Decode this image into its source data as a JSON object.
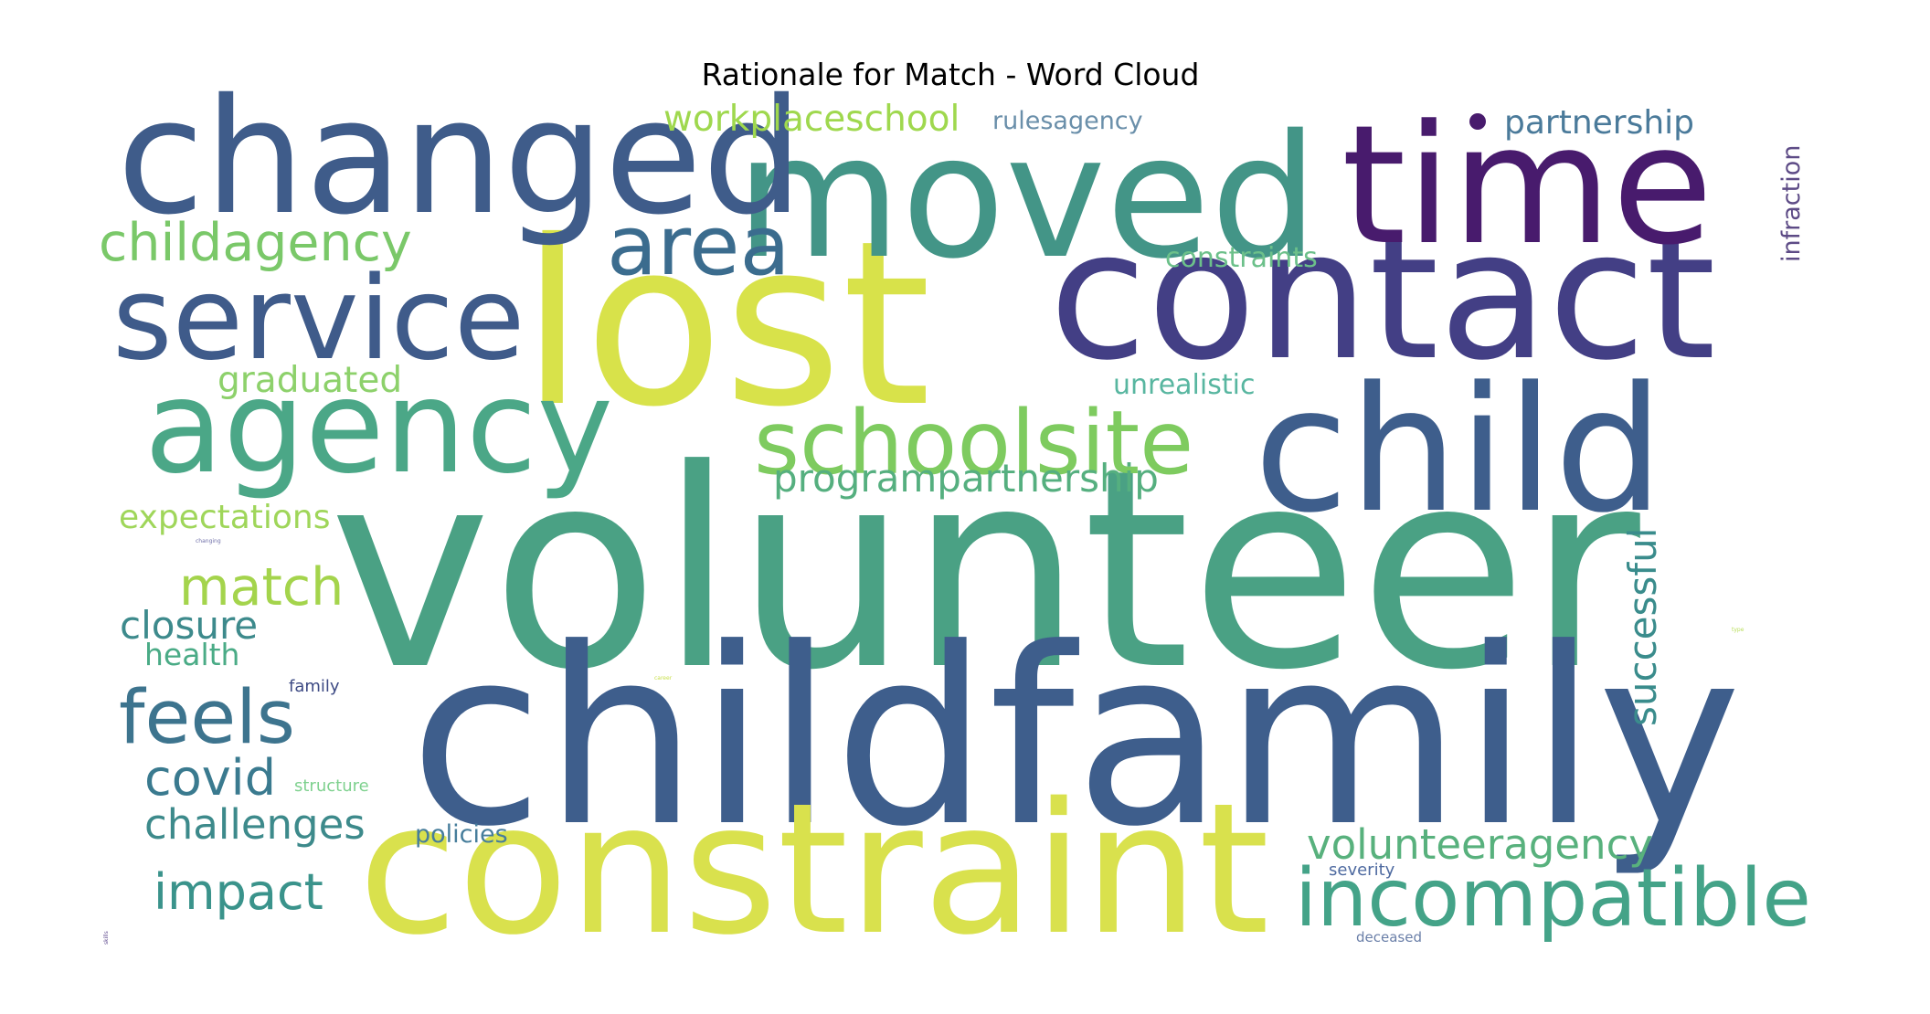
{
  "chart_data": {
    "type": "wordcloud",
    "title": "Rationale for Match - Word Cloud",
    "words": [
      {
        "text": "volunteer",
        "weight": 1.0,
        "color": "#4aa184"
      },
      {
        "text": "childfamily",
        "weight": 0.89,
        "color": "#3e5e8c"
      },
      {
        "text": "lost",
        "weight": 0.83,
        "color": "#d8e24a"
      },
      {
        "text": "constraint",
        "weight": 0.66,
        "color": "#d9e14d"
      },
      {
        "text": "contact",
        "weight": 0.65,
        "color": "#433f85"
      },
      {
        "text": "child",
        "weight": 0.63,
        "color": "#3e5e8c"
      },
      {
        "text": "moved",
        "weight": 0.62,
        "color": "#439587"
      },
      {
        "text": "time",
        "weight": 0.6,
        "color": "#481b6d"
      },
      {
        "text": "changed",
        "weight": 0.58,
        "color": "#3f5c8a"
      },
      {
        "text": "agency",
        "weight": 0.47,
        "color": "#4ba787"
      },
      {
        "text": "service",
        "weight": 0.42,
        "color": "#3f5b8a"
      },
      {
        "text": "schoolsite",
        "weight": 0.32,
        "color": "#7ecb5f"
      },
      {
        "text": "area",
        "weight": 0.3,
        "color": "#3b6c8e"
      },
      {
        "text": "incompatible",
        "weight": 0.29,
        "color": "#44a388"
      },
      {
        "text": "feels",
        "weight": 0.27,
        "color": "#3d748e"
      },
      {
        "text": "childagency",
        "weight": 0.19,
        "color": "#7ac869"
      },
      {
        "text": "match",
        "weight": 0.19,
        "color": "#a4d44c"
      },
      {
        "text": "impact",
        "weight": 0.18,
        "color": "#3a938b"
      },
      {
        "text": "covid",
        "weight": 0.18,
        "color": "#3a7a8f"
      },
      {
        "text": "volunteeragency",
        "weight": 0.15,
        "color": "#58b17d"
      },
      {
        "text": "challenges",
        "weight": 0.15,
        "color": "#3d8a8b"
      },
      {
        "text": "closure",
        "weight": 0.14,
        "color": "#3d8a8c"
      },
      {
        "text": "successful",
        "weight": 0.14,
        "color": "#3a8c8c"
      },
      {
        "text": "programpartnership",
        "weight": 0.14,
        "color": "#55af7f"
      },
      {
        "text": "workplaceschool",
        "weight": 0.13,
        "color": "#9fd84e"
      },
      {
        "text": "graduated",
        "weight": 0.13,
        "color": "#8dd16b"
      },
      {
        "text": "partnership",
        "weight": 0.12,
        "color": "#4a7a9a"
      },
      {
        "text": "expectations",
        "weight": 0.12,
        "color": "#9fd65a"
      },
      {
        "text": "health",
        "weight": 0.11,
        "color": "#4aab86"
      },
      {
        "text": "constraints",
        "weight": 0.1,
        "color": "#6cc08a"
      },
      {
        "text": "unrealistic",
        "weight": 0.1,
        "color": "#58b6a0"
      },
      {
        "text": "policies",
        "weight": 0.09,
        "color": "#467d9b"
      },
      {
        "text": "rulesagency",
        "weight": 0.09,
        "color": "#6a8faa"
      },
      {
        "text": "infraction",
        "weight": 0.09,
        "color": "#5d4b86"
      },
      {
        "text": "family",
        "weight": 0.06,
        "color": "#3d4a84"
      },
      {
        "text": "structure",
        "weight": 0.06,
        "color": "#7fd18f"
      },
      {
        "text": "severity",
        "weight": 0.06,
        "color": "#4e6aa0"
      },
      {
        "text": "deceased",
        "weight": 0.05,
        "color": "#6a7fa8"
      },
      {
        "text": "changing",
        "weight": 0.02,
        "color": "#6e6ea8"
      },
      {
        "text": "career",
        "weight": 0.02,
        "color": "#c8e04c"
      },
      {
        "text": "type",
        "weight": 0.02,
        "color": "#b9de5a"
      },
      {
        "text": "skills",
        "weight": 0.02,
        "color": "#5e4a8e"
      },
      {
        "text": "",
        "weight": 0.16,
        "color": "#481b6d"
      }
    ]
  }
}
